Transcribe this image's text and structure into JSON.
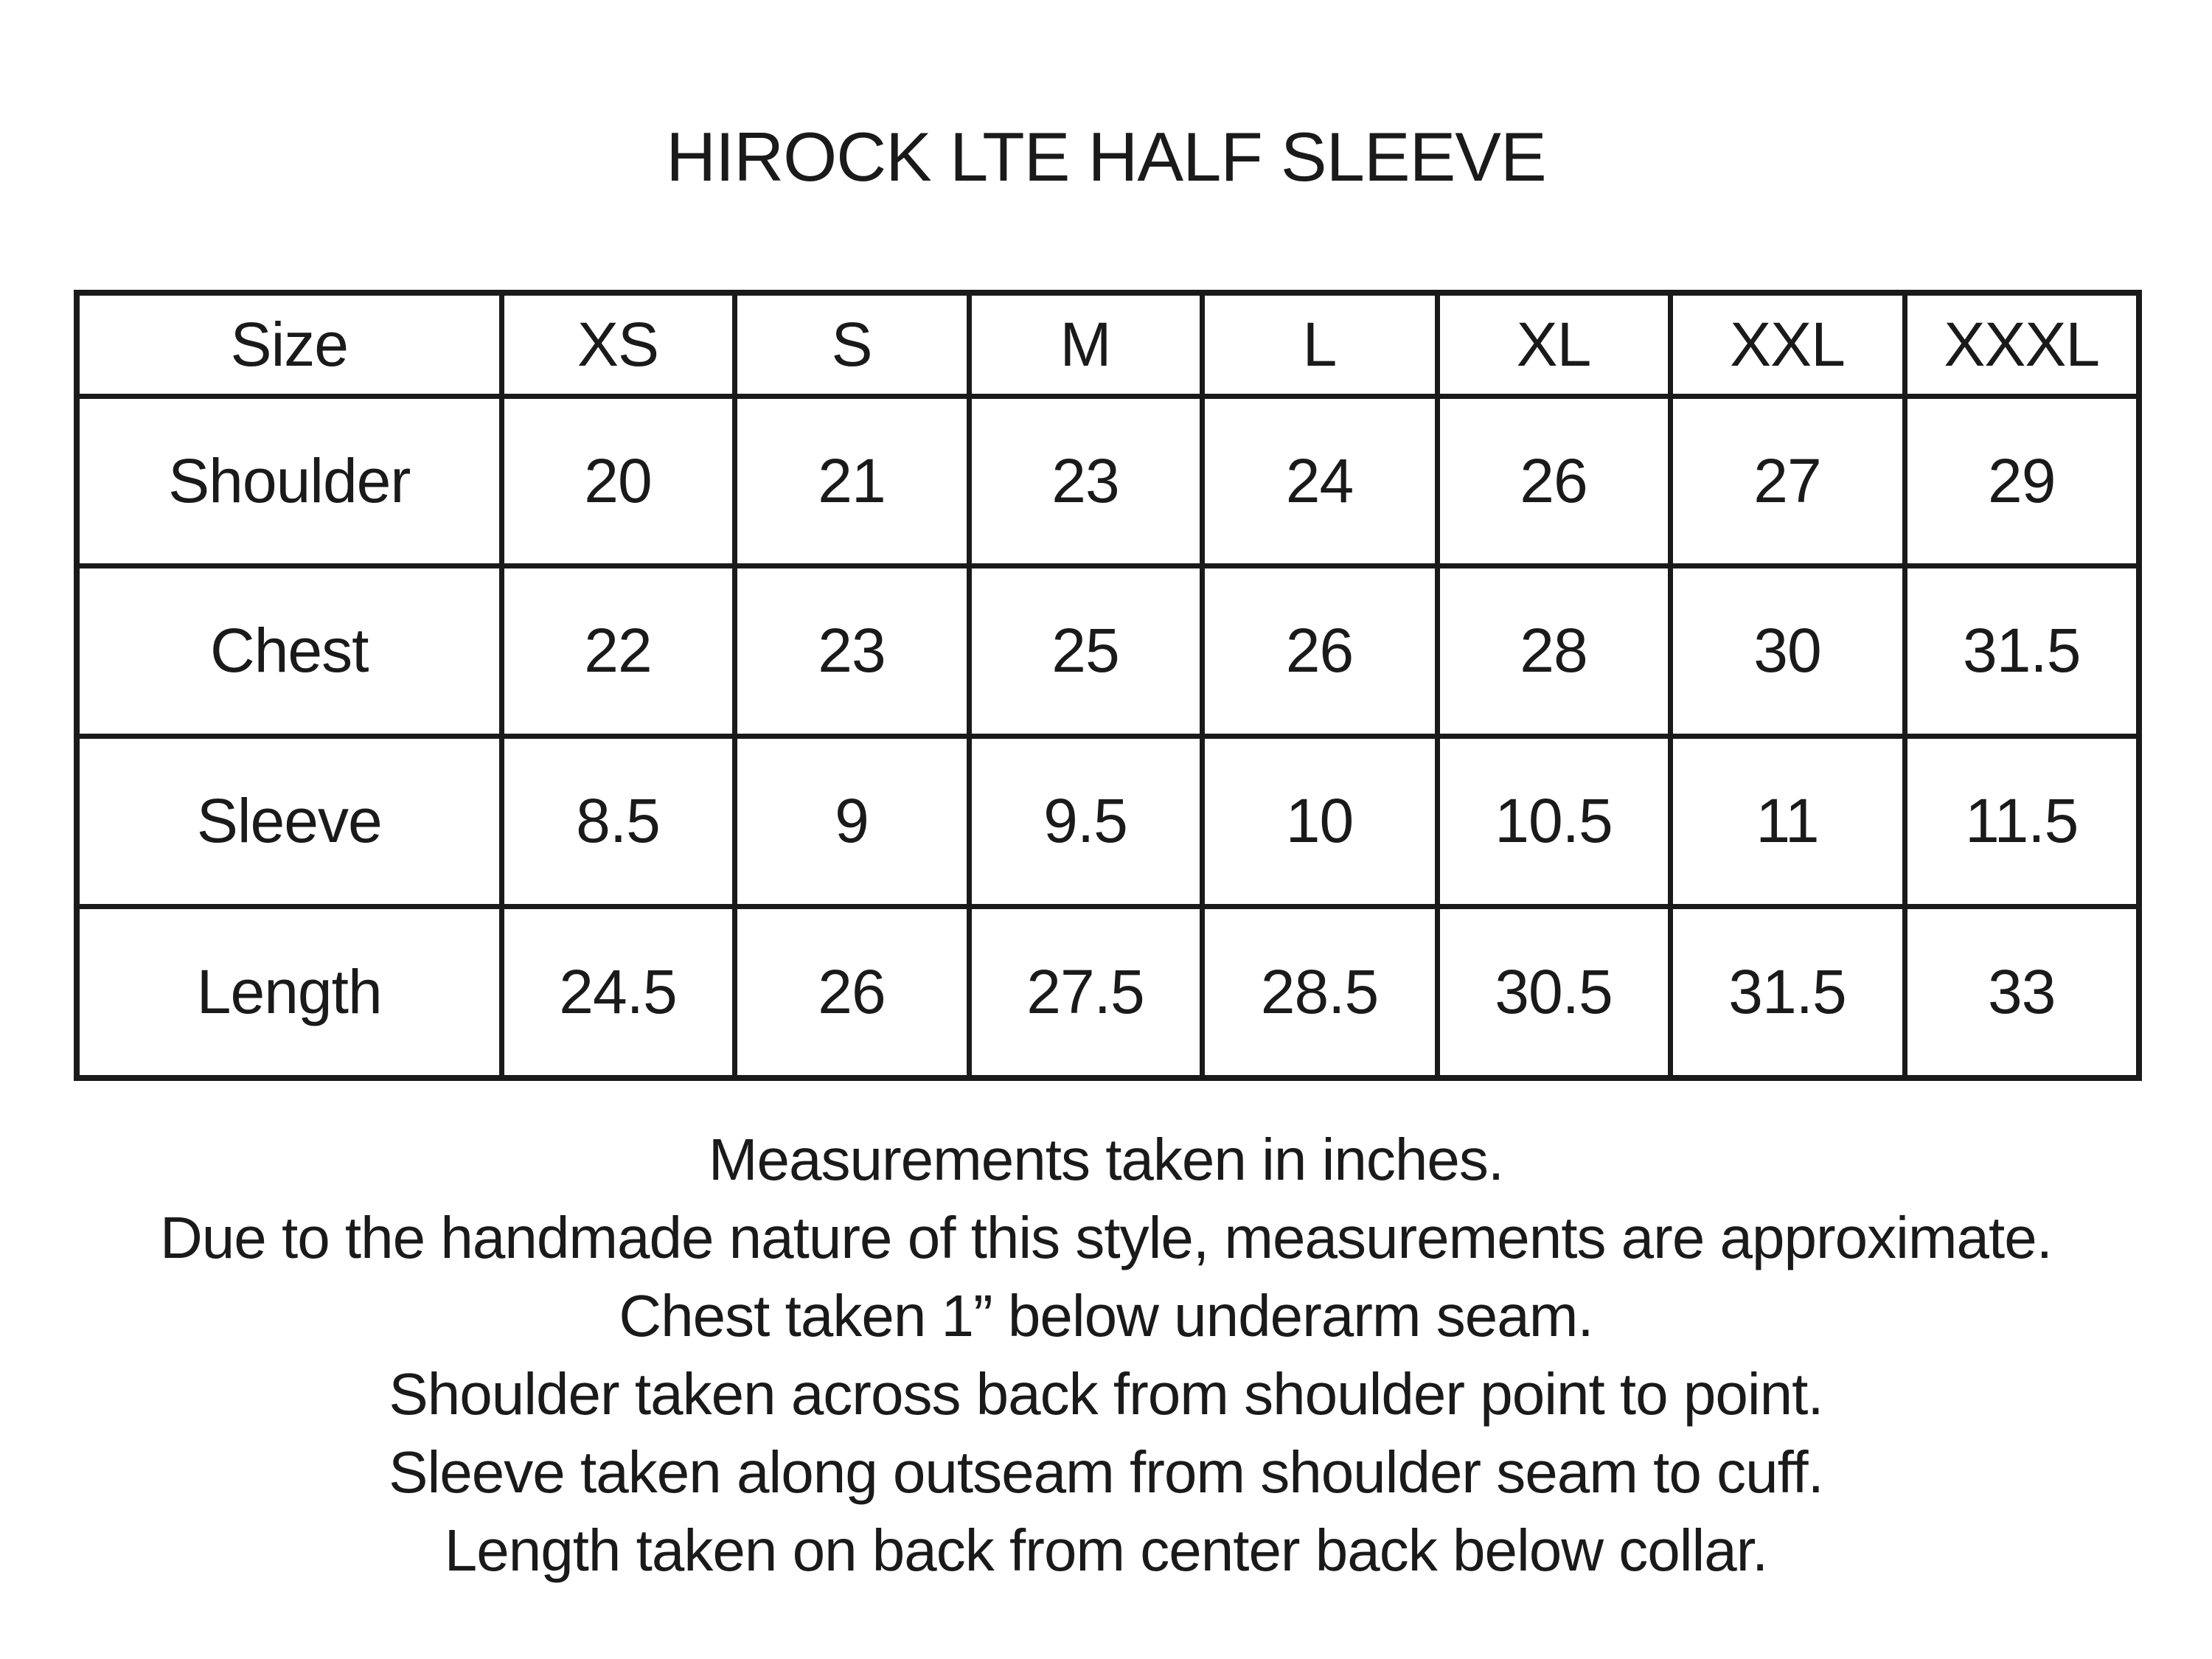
{
  "title": "HIROCK LTE HALF SLEEVE",
  "table": {
    "header": [
      "Size",
      "XS",
      "S",
      "M",
      "L",
      "XL",
      "XXL",
      "XXXL"
    ],
    "rows": [
      {
        "label": "Shoulder",
        "values": [
          "20",
          "21",
          "23",
          "24",
          "26",
          "27",
          "29"
        ]
      },
      {
        "label": "Chest",
        "values": [
          "22",
          "23",
          "25",
          "26",
          "28",
          "30",
          "31.5"
        ]
      },
      {
        "label": "Sleeve",
        "values": [
          "8.5",
          "9",
          "9.5",
          "10",
          "10.5",
          "11",
          "11.5"
        ]
      },
      {
        "label": "Length",
        "values": [
          "24.5",
          "26",
          "27.5",
          "28.5",
          "30.5",
          "31.5",
          "33"
        ]
      }
    ]
  },
  "notes": [
    "Measurements taken in inches.",
    "Due to the handmade nature of this style, measurements are approximate.",
    "Chest taken 1” below underarm seam.",
    "Shoulder taken across back from shoulder point to point.",
    "Sleeve taken along outseam from shoulder seam to cuff.",
    "Length taken on back from center back below collar."
  ]
}
